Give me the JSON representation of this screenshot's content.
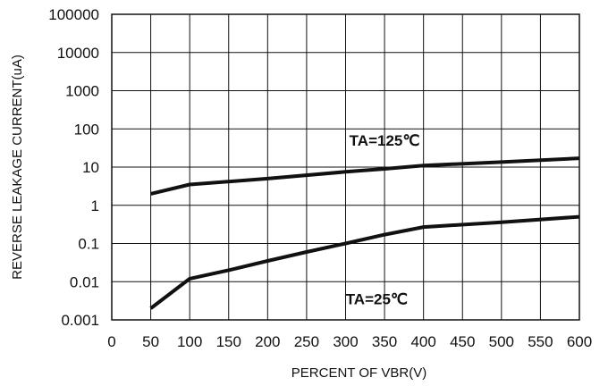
{
  "chart_data": {
    "type": "line",
    "title": "",
    "xlabel": "PERCENT OF VBR(V)",
    "ylabel": "REVERSE LEAKAGE CURRENT(uA)",
    "xlim": [
      0,
      600
    ],
    "ylim": [
      0.001,
      100000
    ],
    "y_scale": "log",
    "grid": true,
    "x_ticks": [
      0,
      50,
      100,
      150,
      200,
      250,
      300,
      350,
      400,
      450,
      500,
      550,
      600
    ],
    "x_tick_labels": [
      "0",
      "50",
      "100",
      "150",
      "200",
      "250",
      "300",
      "350",
      "400",
      "450",
      "500",
      "550",
      "600"
    ],
    "y_ticks": [
      0.001,
      0.01,
      0.1,
      1,
      10,
      100,
      1000,
      10000,
      100000
    ],
    "y_tick_labels": [
      "0.001",
      "0.01",
      "0.1",
      "1",
      "10",
      "100",
      "1000",
      "10000",
      "100000"
    ],
    "series": [
      {
        "name": "TA=125℃",
        "x": [
          50,
          100,
          200,
          300,
          350,
          400,
          500,
          600
        ],
        "y": [
          2.0,
          3.5,
          5.0,
          7.5,
          9.0,
          11.0,
          13.5,
          17.0
        ]
      },
      {
        "name": "TA=25℃",
        "x": [
          50,
          100,
          150,
          200,
          250,
          300,
          350,
          400,
          500,
          600
        ],
        "y": [
          0.002,
          0.012,
          0.02,
          0.035,
          0.06,
          0.1,
          0.17,
          0.27,
          0.36,
          0.5
        ]
      }
    ],
    "annotations": [
      {
        "text": "TA=125℃",
        "x": 350,
        "y": 50,
        "series": 0
      },
      {
        "text": "TA=25℃",
        "x": 340,
        "y": 0.0035,
        "series": 1
      }
    ]
  }
}
